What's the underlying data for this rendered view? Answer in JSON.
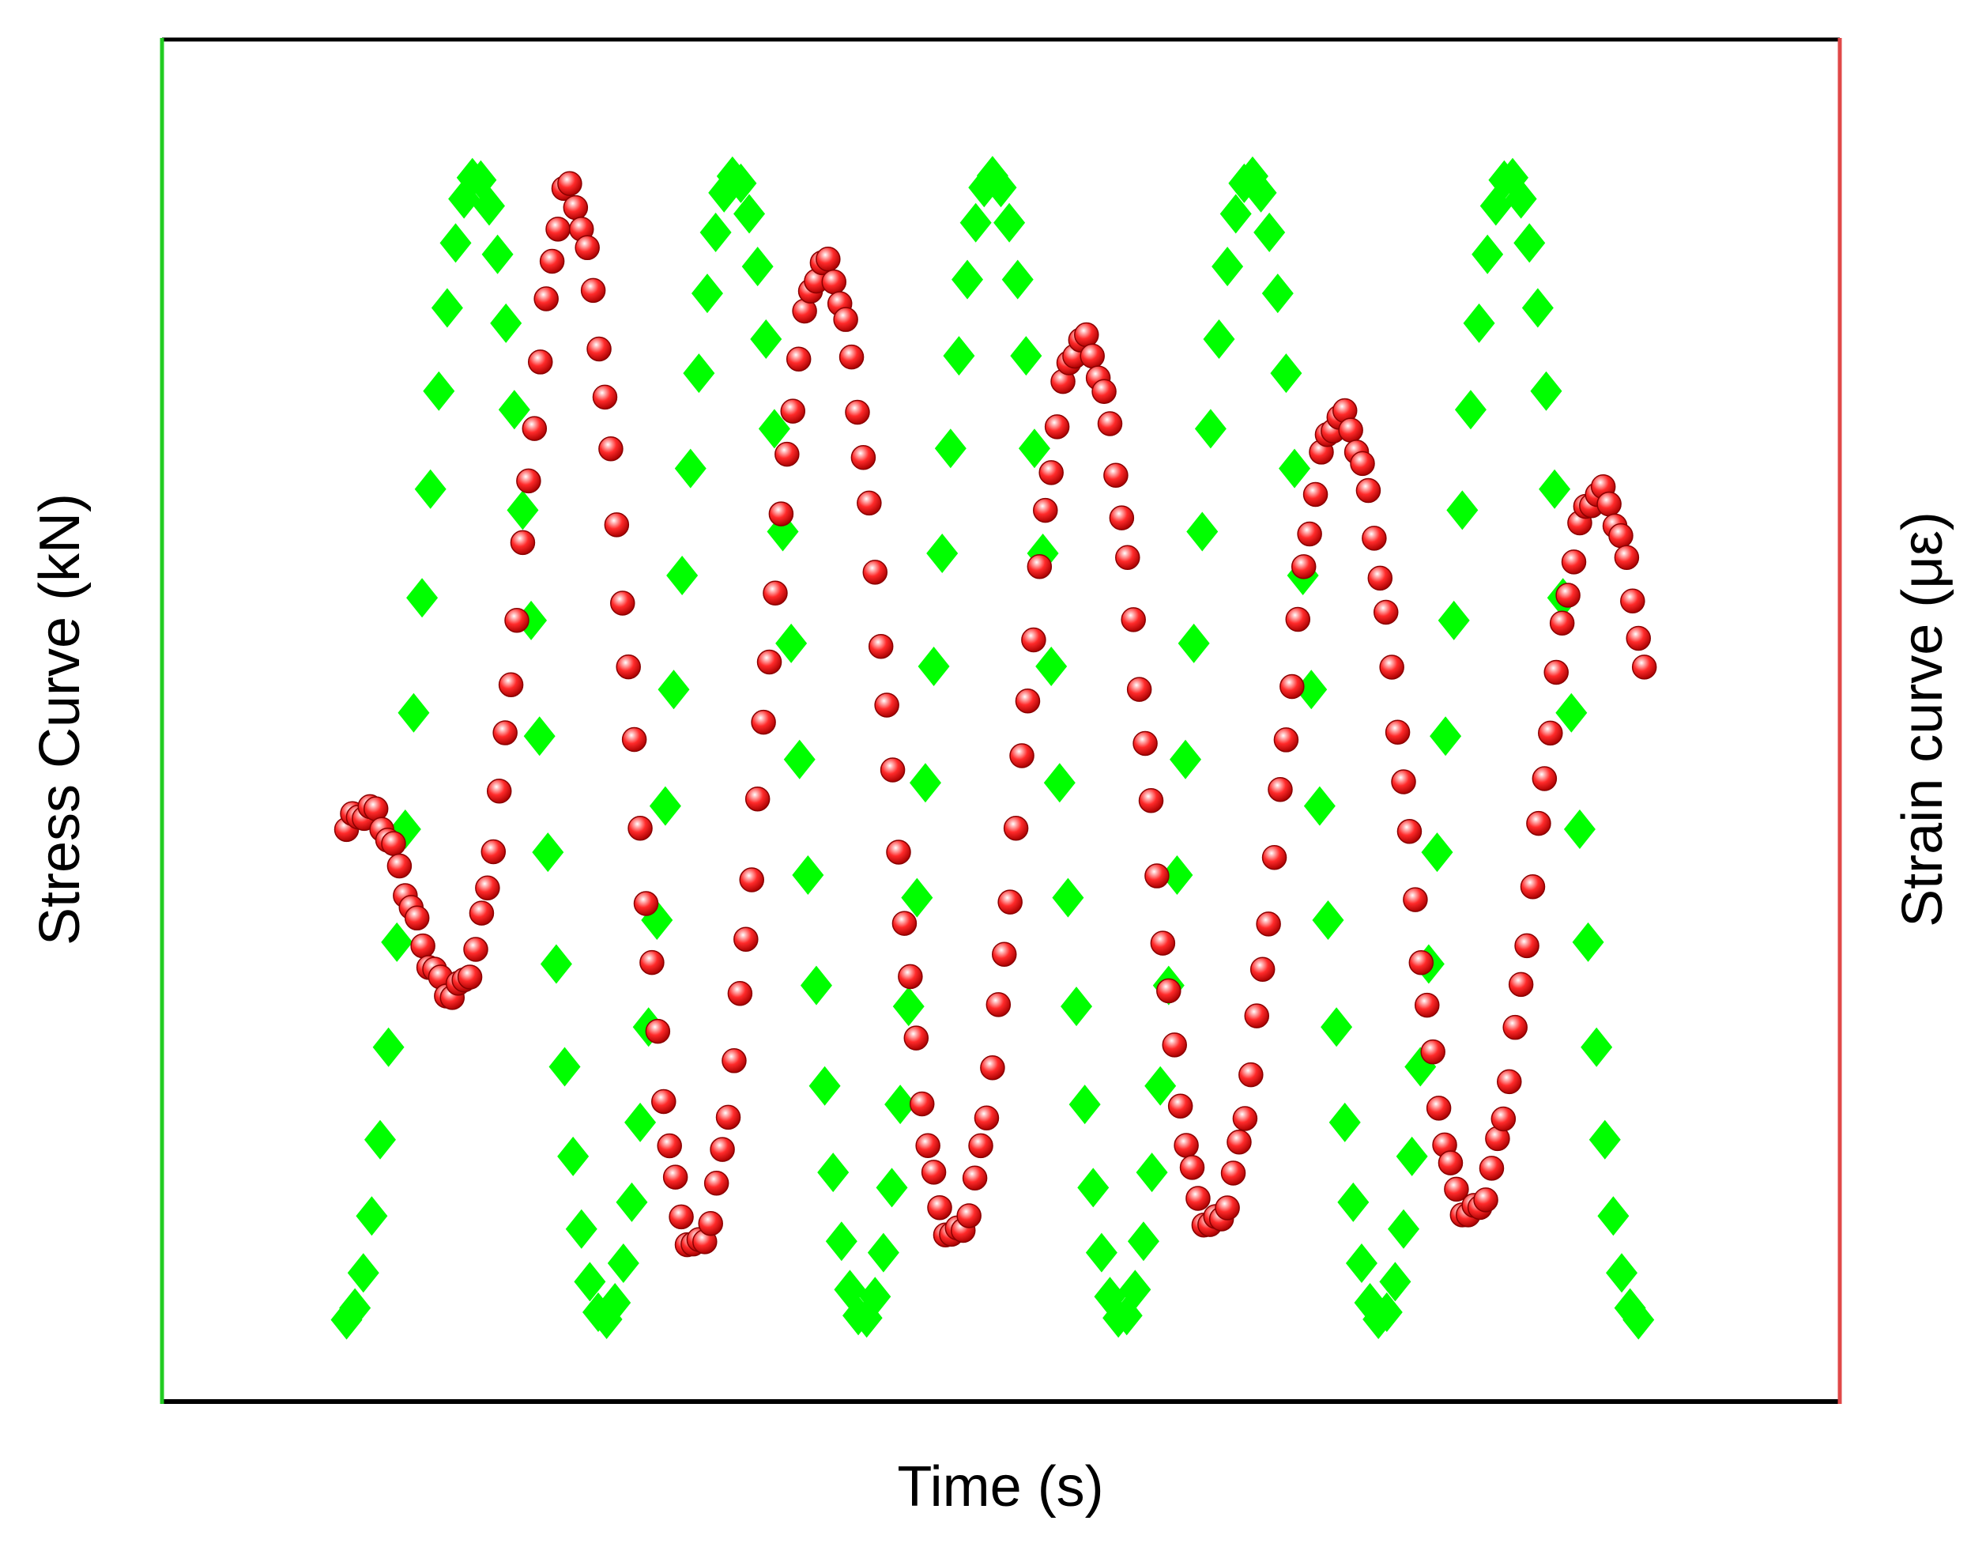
{
  "chart_data": {
    "type": "scatter",
    "xlabel": "Time (s)",
    "ylabel_left": "Stress Curve (kN)",
    "ylabel_right": "Strain curve (με)",
    "xlim": [
      0,
      1
    ],
    "ylim_left": [
      0,
      1
    ],
    "ylim_right": [
      0,
      1
    ],
    "grid": false,
    "colors": {
      "stress": "#00ff00",
      "strain": "#ff2020",
      "left_axis": "#22cc22",
      "right_axis": "#e04848",
      "frame": "#000000"
    },
    "series": [
      {
        "axis": "left",
        "marker": "diamond",
        "sample_step": 0.005,
        "start": 0.11,
        "end": 0.88,
        "waveform": {
          "kind": "sine",
          "period": 0.154,
          "phase_at_start": -0.25,
          "center": 0.48,
          "amplitude": 0.42
        }
      },
      {
        "axis": "right",
        "marker": "sphere",
        "sample_step": 0.0035,
        "start": 0.11,
        "end": 0.884,
        "waveform": {
          "kind": "damped-drift",
          "period": 0.154,
          "amplitude_start": 0.42,
          "amplitude_end": 0.26,
          "center_start": 0.52,
          "center_end": 0.4,
          "phase_lag": 0.055,
          "ramp_end": 0.13
        }
      }
    ]
  }
}
